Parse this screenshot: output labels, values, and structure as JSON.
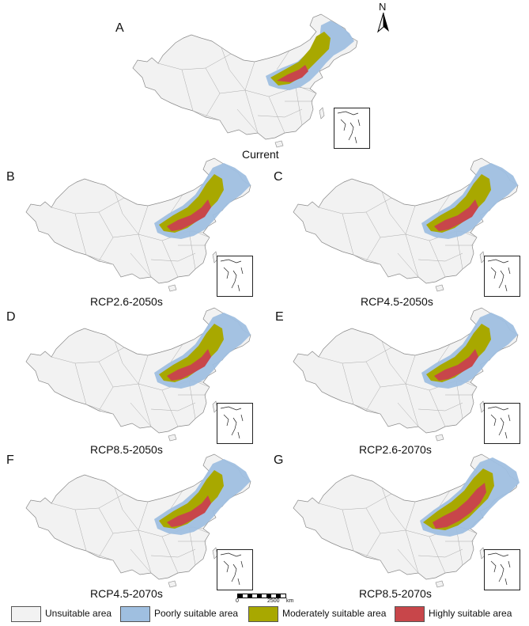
{
  "north_arrow": {
    "label": "N"
  },
  "panels": [
    {
      "letter": "A",
      "caption": "Current",
      "scenario": "current"
    },
    {
      "letter": "B",
      "caption": "RCP2.6-2050s",
      "scenario": "mid"
    },
    {
      "letter": "C",
      "caption": "RCP4.5-2050s",
      "scenario": "mid"
    },
    {
      "letter": "D",
      "caption": "RCP8.5-2050s",
      "scenario": "mid"
    },
    {
      "letter": "E",
      "caption": "RCP2.6-2070s",
      "scenario": "mid"
    },
    {
      "letter": "F",
      "caption": "RCP4.5-2070s",
      "scenario": "mid"
    },
    {
      "letter": "G",
      "caption": "RCP8.5-2070s",
      "scenario": "high"
    }
  ],
  "scale_bar": {
    "start": "0",
    "end": "2500",
    "unit": "km"
  },
  "legend": [
    {
      "label": "Unsuitable area",
      "color": "#f2f2f2"
    },
    {
      "label": "Poorly suitable area",
      "color": "#9fbfe0"
    },
    {
      "label": "Moderately suitable area",
      "color": "#a8a800"
    },
    {
      "label": "Highly suitable area",
      "color": "#c8464a"
    }
  ]
}
